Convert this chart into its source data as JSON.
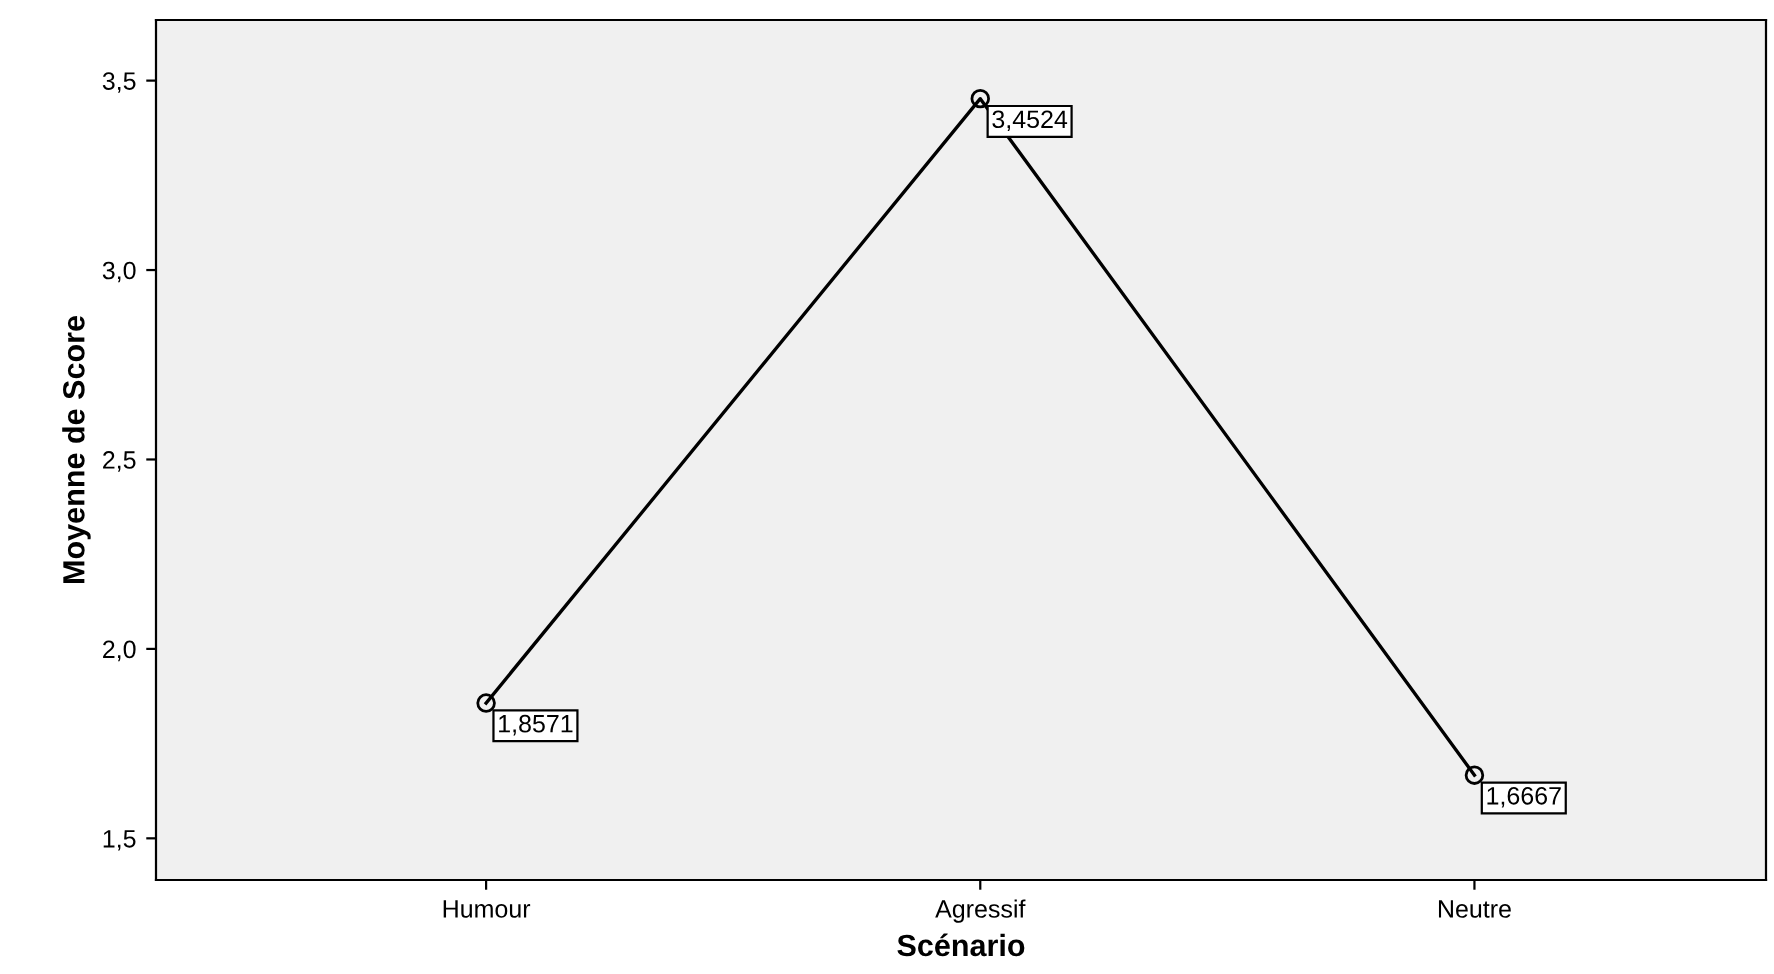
{
  "chart_data": {
    "type": "line",
    "xlabel": "Scénario",
    "ylabel": "Moyenne de Score",
    "categories": [
      "Humour",
      "Agressif",
      "Neutre"
    ],
    "series": [
      {
        "color": "#000000",
        "values": [
          1.8571,
          3.4524,
          1.6667
        ],
        "value_labels": [
          "1,8571",
          "3,4524",
          "1,6667"
        ]
      }
    ],
    "ylim": [
      1.39,
      3.66
    ],
    "yticks": [
      {
        "value": 1.5,
        "label": "1,5"
      },
      {
        "value": 2.0,
        "label": "2,0"
      },
      {
        "value": 2.5,
        "label": "2,5"
      },
      {
        "value": 3.0,
        "label": "3,0"
      },
      {
        "value": 3.5,
        "label": "3,5"
      }
    ],
    "grid": false,
    "legend": false,
    "marker": "circle",
    "line_style": "solid"
  }
}
